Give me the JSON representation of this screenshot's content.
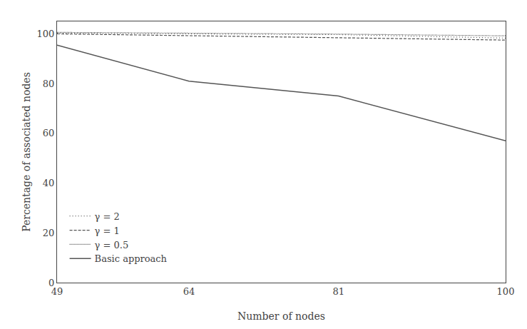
{
  "chart_data": {
    "type": "line",
    "x": [
      49,
      64,
      81,
      100
    ],
    "series": [
      {
        "name": "γ = 2",
        "color": "#555555",
        "line_style": "dotted",
        "values": [
          100.3,
          100.1,
          99.7,
          98.3
        ]
      },
      {
        "name": "γ = 1",
        "color": "#555555",
        "line_style": "dashed",
        "values": [
          100.0,
          99.3,
          98.6,
          97.5
        ]
      },
      {
        "name": "γ = 0.5",
        "color": "#555555",
        "line_style": "densely dotted",
        "values": [
          100.6,
          100.3,
          99.9,
          99.2
        ]
      },
      {
        "name": "Basic approach",
        "color": "#555555",
        "line_style": "solid",
        "values": [
          95.5,
          81.0,
          75.0,
          57.0
        ]
      }
    ],
    "xlabel": "Number of nodes",
    "ylabel": "Percentage of associated nodes",
    "xlim": [
      49,
      100
    ],
    "ylim": [
      0,
      105
    ],
    "xticks": [
      49,
      64,
      81,
      100
    ],
    "yticks": [
      0,
      20,
      40,
      60,
      80,
      100
    ],
    "grid": false,
    "legend": "lower left"
  }
}
